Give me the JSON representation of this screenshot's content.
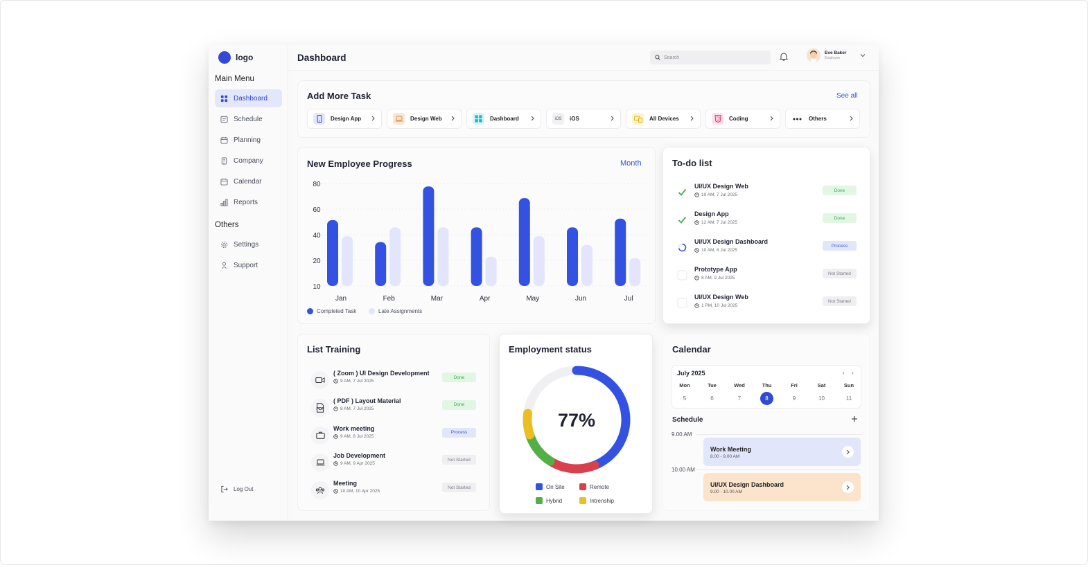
{
  "app": {
    "logo_text": "logo",
    "page_title": "Dashboard",
    "search_placeholder": "Search",
    "user_name": "Eve Baker",
    "user_role": "Employee",
    "brand_color": "#3149d8"
  },
  "sidebar": {
    "main_heading": "Main Menu",
    "main_items": [
      {
        "label": "Dashboard",
        "icon": "grid-icon",
        "active": true
      },
      {
        "label": "Schedule",
        "icon": "schedule-icon"
      },
      {
        "label": "Planning",
        "icon": "planning-icon"
      },
      {
        "label": "Company",
        "icon": "company-icon"
      },
      {
        "label": "Calendar",
        "icon": "calendar-icon"
      },
      {
        "label": "Reports",
        "icon": "reports-icon"
      }
    ],
    "others_heading": "Others",
    "other_items": [
      {
        "label": "Settings",
        "icon": "gear-icon"
      },
      {
        "label": "Support",
        "icon": "support-icon"
      }
    ],
    "logout": "Log Out"
  },
  "add_task": {
    "title": "Add More Task",
    "see_all": "See all",
    "chips": [
      {
        "label": "Design App",
        "icon": "phone-icon",
        "color": "#e3e7fb"
      },
      {
        "label": "Design Web",
        "icon": "laptop-icon",
        "color": "#fbe6d6"
      },
      {
        "label": "Dashboard",
        "icon": "dashboard-icon",
        "color": "#d6f3f7"
      },
      {
        "label": "iOS",
        "icon": "ios-icon",
        "icon_text": "iOS",
        "color": "#f1f1f3"
      },
      {
        "label": "All Devices",
        "icon": "devices-icon",
        "color": "#fdf3c8"
      },
      {
        "label": "Coding",
        "icon": "html5-icon",
        "color": "#fde0ec"
      },
      {
        "label": "Others",
        "icon": "more-icon",
        "color": "#ffffff"
      }
    ]
  },
  "progress": {
    "title": "New Employee Progress",
    "period": "Month"
  },
  "chart_data": {
    "type": "bar",
    "categories": [
      "Jan",
      "Feb",
      "Mar",
      "Apr",
      "May",
      "Jun",
      "Jul"
    ],
    "series": [
      {
        "name": "Completed Task",
        "values": [
          55,
          40,
          78,
          50,
          70,
          50,
          56
        ],
        "color": "#3452e1"
      },
      {
        "name": "Late Assignments",
        "values": [
          44,
          50,
          50,
          30,
          44,
          38,
          29
        ],
        "color": "#e2e5fb"
      }
    ],
    "y_ticks": [
      "80",
      "60",
      "40",
      "20",
      "10"
    ],
    "legend": "bottom-left",
    "grid": true
  },
  "todo": {
    "title": "To-do list",
    "items": [
      {
        "title": "UI/UX Design Web",
        "time": "10 AM, 7 Jul 2025",
        "status": "Done",
        "state": "done"
      },
      {
        "title": "Design App",
        "time": "12 AM, 7 Jul 2025",
        "status": "Done",
        "state": "done"
      },
      {
        "title": "UI/UX Design Dashboard",
        "time": "10 AM, 8 Jul 2025",
        "status": "Process",
        "state": "process"
      },
      {
        "title": "Prototype App",
        "time": "8 AM, 9 Jul 2025",
        "status": "Not Started",
        "state": "not"
      },
      {
        "title": "UI/UX Design Web",
        "time": "1 PM, 10 Jul 2025",
        "status": "Not Started",
        "state": "not"
      }
    ]
  },
  "training": {
    "title": "List Training",
    "items": [
      {
        "title": "( Zoom ) UI Design Development",
        "time": "9 AM, 7 Jul 2025",
        "status": "Done",
        "state": "done",
        "icon": "video-icon"
      },
      {
        "title": "( PDF ) Layout Material",
        "time": "8 AM, 7 Jul 2025",
        "status": "Done",
        "state": "done",
        "icon": "pdf-icon",
        "icon_text": "PDF"
      },
      {
        "title": "Work meeting",
        "time": "9 AM, 8 Jul 2025",
        "status": "Process",
        "state": "process",
        "icon": "briefcase-icon"
      },
      {
        "title": "Job Development",
        "time": "9 AM, 9 Apr 2025",
        "status": "Not Started",
        "state": "not",
        "icon": "laptop-icon"
      },
      {
        "title": "Meeting",
        "time": "10 AM, 10 Apr 2025",
        "status": "Not Started",
        "state": "not",
        "icon": "team-icon"
      }
    ]
  },
  "employment": {
    "title": "Employment status",
    "percent_label": "77%",
    "segments": [
      {
        "name": "On Site",
        "value": 44,
        "color": "#3452e1"
      },
      {
        "name": "Remote",
        "value": 15,
        "color": "#d9404e"
      },
      {
        "name": "Hybrid",
        "value": 11,
        "color": "#52b044"
      },
      {
        "name": "Intrenship",
        "value": 7,
        "color": "#ebbe24"
      }
    ],
    "remainder_color": "#f0f0f2"
  },
  "calendar": {
    "title": "Calendar",
    "month": "July 2025",
    "days": [
      {
        "name": "Mon",
        "date": "5"
      },
      {
        "name": "Tue",
        "date": "6"
      },
      {
        "name": "Wed",
        "date": "7"
      },
      {
        "name": "Thu",
        "date": "8",
        "selected": true
      },
      {
        "name": "Fri",
        "date": "9"
      },
      {
        "name": "Sat",
        "date": "10"
      },
      {
        "name": "Sun",
        "date": "11"
      }
    ],
    "schedule_title": "Schedule",
    "times": [
      "9.00 AM",
      "10.00 AM"
    ],
    "events": [
      {
        "title": "Work Meeting",
        "time": "8.00 - 9.00 AM",
        "color": "#e2e6fb"
      },
      {
        "title": "UI/UX Design Dashboard",
        "time": "9.00 - 10.00 AM",
        "color": "#fce3cc"
      }
    ]
  }
}
